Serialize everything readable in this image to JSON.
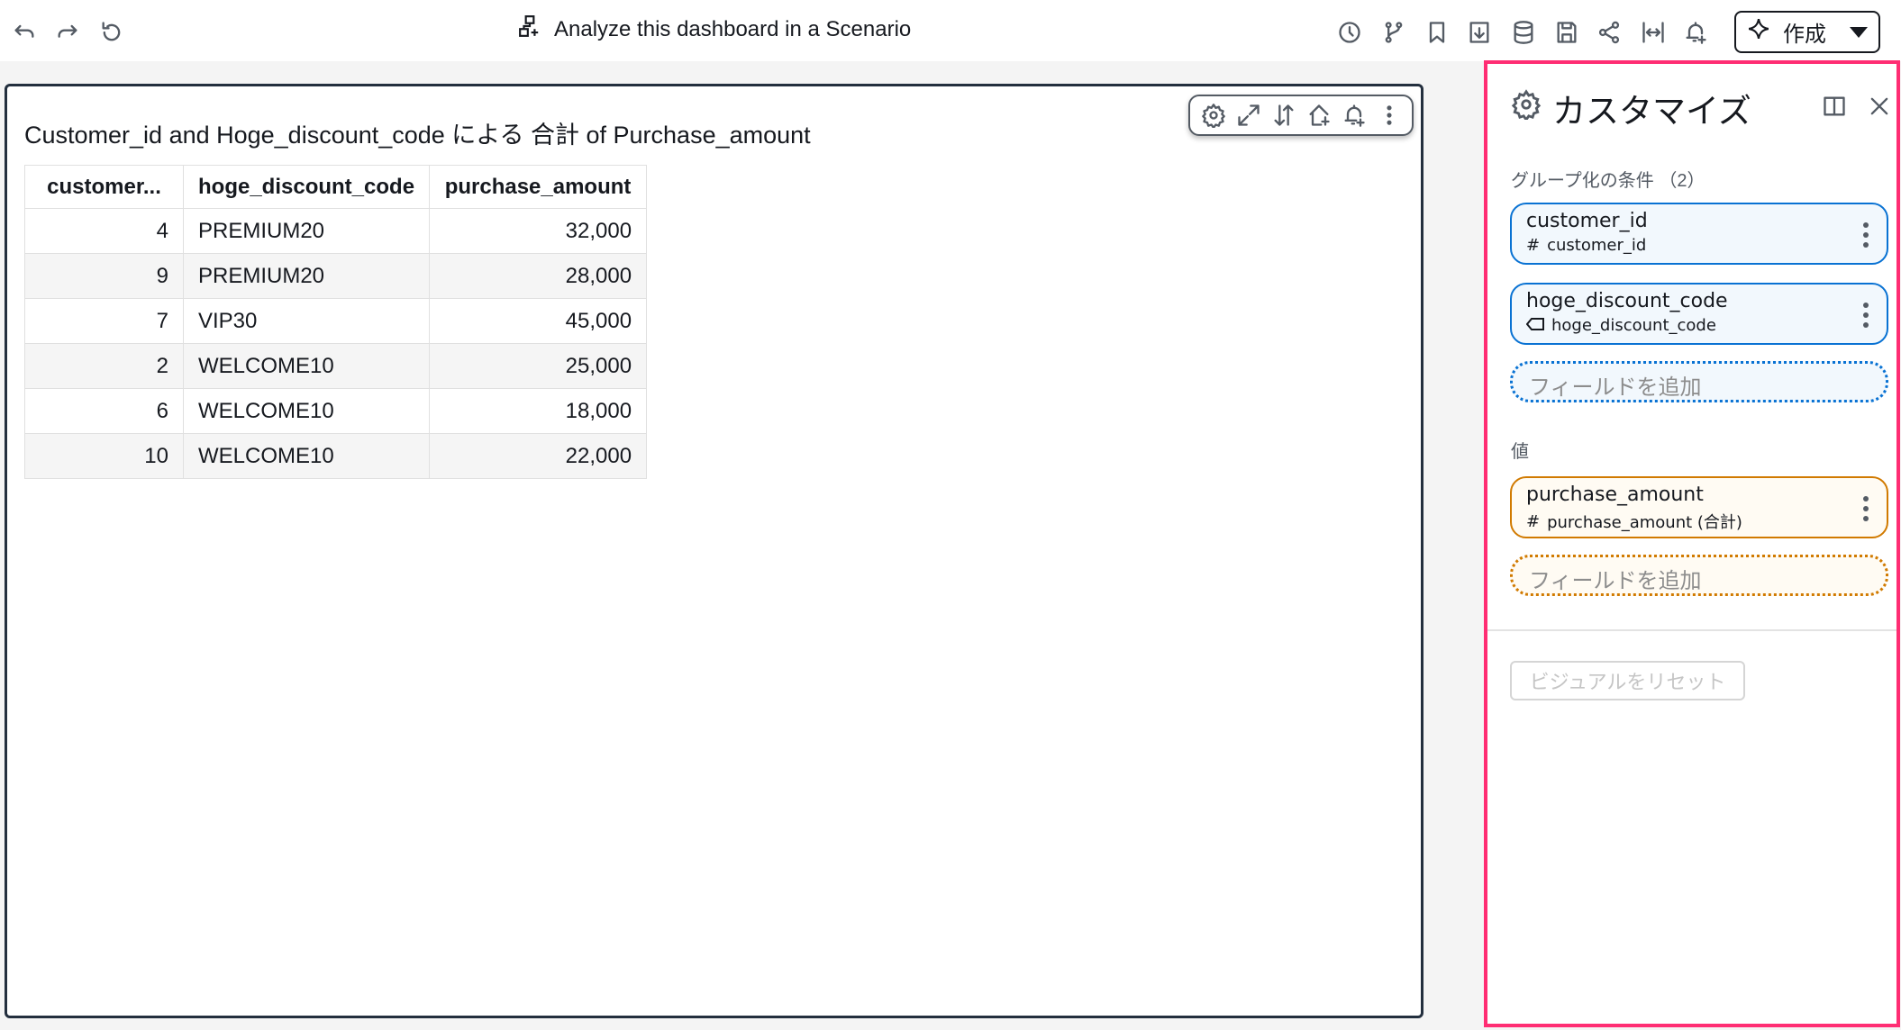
{
  "topbar": {
    "scenario_label": "Analyze this dashboard in a Scenario",
    "create_label": "作成",
    "left_icons": [
      "undo-icon",
      "redo-icon",
      "reset-icon"
    ],
    "right_icons": [
      "history-icon",
      "branch-icon",
      "bookmark-icon",
      "download-icon",
      "dataset-icon",
      "save-icon",
      "share-icon",
      "fit-width-icon",
      "alert-add-icon"
    ]
  },
  "visual": {
    "title": "Customer_id and Hoge_discount_code による 合計 of Purchase_amount",
    "toolbar_icons": [
      "gear-icon",
      "expand-icon",
      "sort-icon",
      "home-add-icon",
      "alert-add-icon",
      "more-icon"
    ],
    "table": {
      "headers": [
        "customer...",
        "hoge_discount_code",
        "purchase_amount"
      ],
      "rows": [
        [
          "4",
          "PREMIUM20",
          "32,000"
        ],
        [
          "9",
          "PREMIUM20",
          "28,000"
        ],
        [
          "7",
          "VIP30",
          "45,000"
        ],
        [
          "2",
          "WELCOME10",
          "25,000"
        ],
        [
          "6",
          "WELCOME10",
          "18,000"
        ],
        [
          "10",
          "WELCOME10",
          "22,000"
        ]
      ]
    }
  },
  "panel": {
    "title": "カスタマイズ",
    "group_label": "グループ化の条件 （2）",
    "group_fields": [
      {
        "name": "customer_id",
        "sub": "customer_id",
        "icon": "hash-icon"
      },
      {
        "name": "hoge_discount_code",
        "sub": "hoge_discount_code",
        "icon": "tag-icon"
      }
    ],
    "add_field": "フィールドを追加",
    "value_label": "値",
    "value_fields": [
      {
        "name": "purchase_amount",
        "sub": "purchase_amount (合計)",
        "icon": "hash-icon"
      }
    ],
    "reset_label": "ビジュアルをリセット"
  },
  "colors": {
    "highlight": "#ff2d73",
    "group": "#0972d3",
    "value": "#d17a00"
  }
}
